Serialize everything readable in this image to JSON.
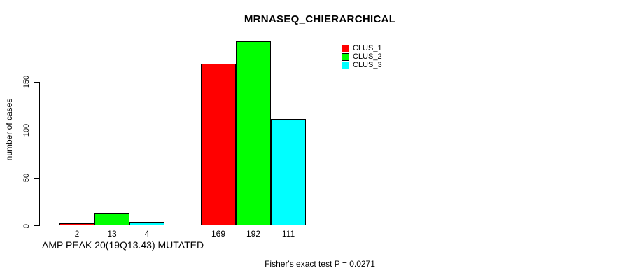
{
  "chart_data": {
    "type": "bar",
    "title": "MRNASEQ_CHIERARCHICAL",
    "ylabel": "number of cases",
    "xlabel": "AMP PEAK 20(19Q13.43) MUTATED",
    "footer": "Fisher's exact test P = 0.0271",
    "yticks": [
      0,
      50,
      100,
      150
    ],
    "ylim": [
      0,
      150
    ],
    "grid": false,
    "value_labels_shown": true,
    "legend": {
      "position": "top-right",
      "entries": [
        "CLUS_1",
        "CLUS_2",
        "CLUS_3"
      ]
    },
    "series": [
      {
        "name": "CLUS_1",
        "color": "#FF0000",
        "values": [
          2,
          169
        ]
      },
      {
        "name": "CLUS_2",
        "color": "#00FF00",
        "values": [
          13,
          192
        ]
      },
      {
        "name": "CLUS_3",
        "color": "#00FFFF",
        "values": [
          4,
          111
        ]
      }
    ],
    "colors": {
      "bar_border": "#000000",
      "text": "#000000",
      "background": "#FFFFFF"
    }
  }
}
